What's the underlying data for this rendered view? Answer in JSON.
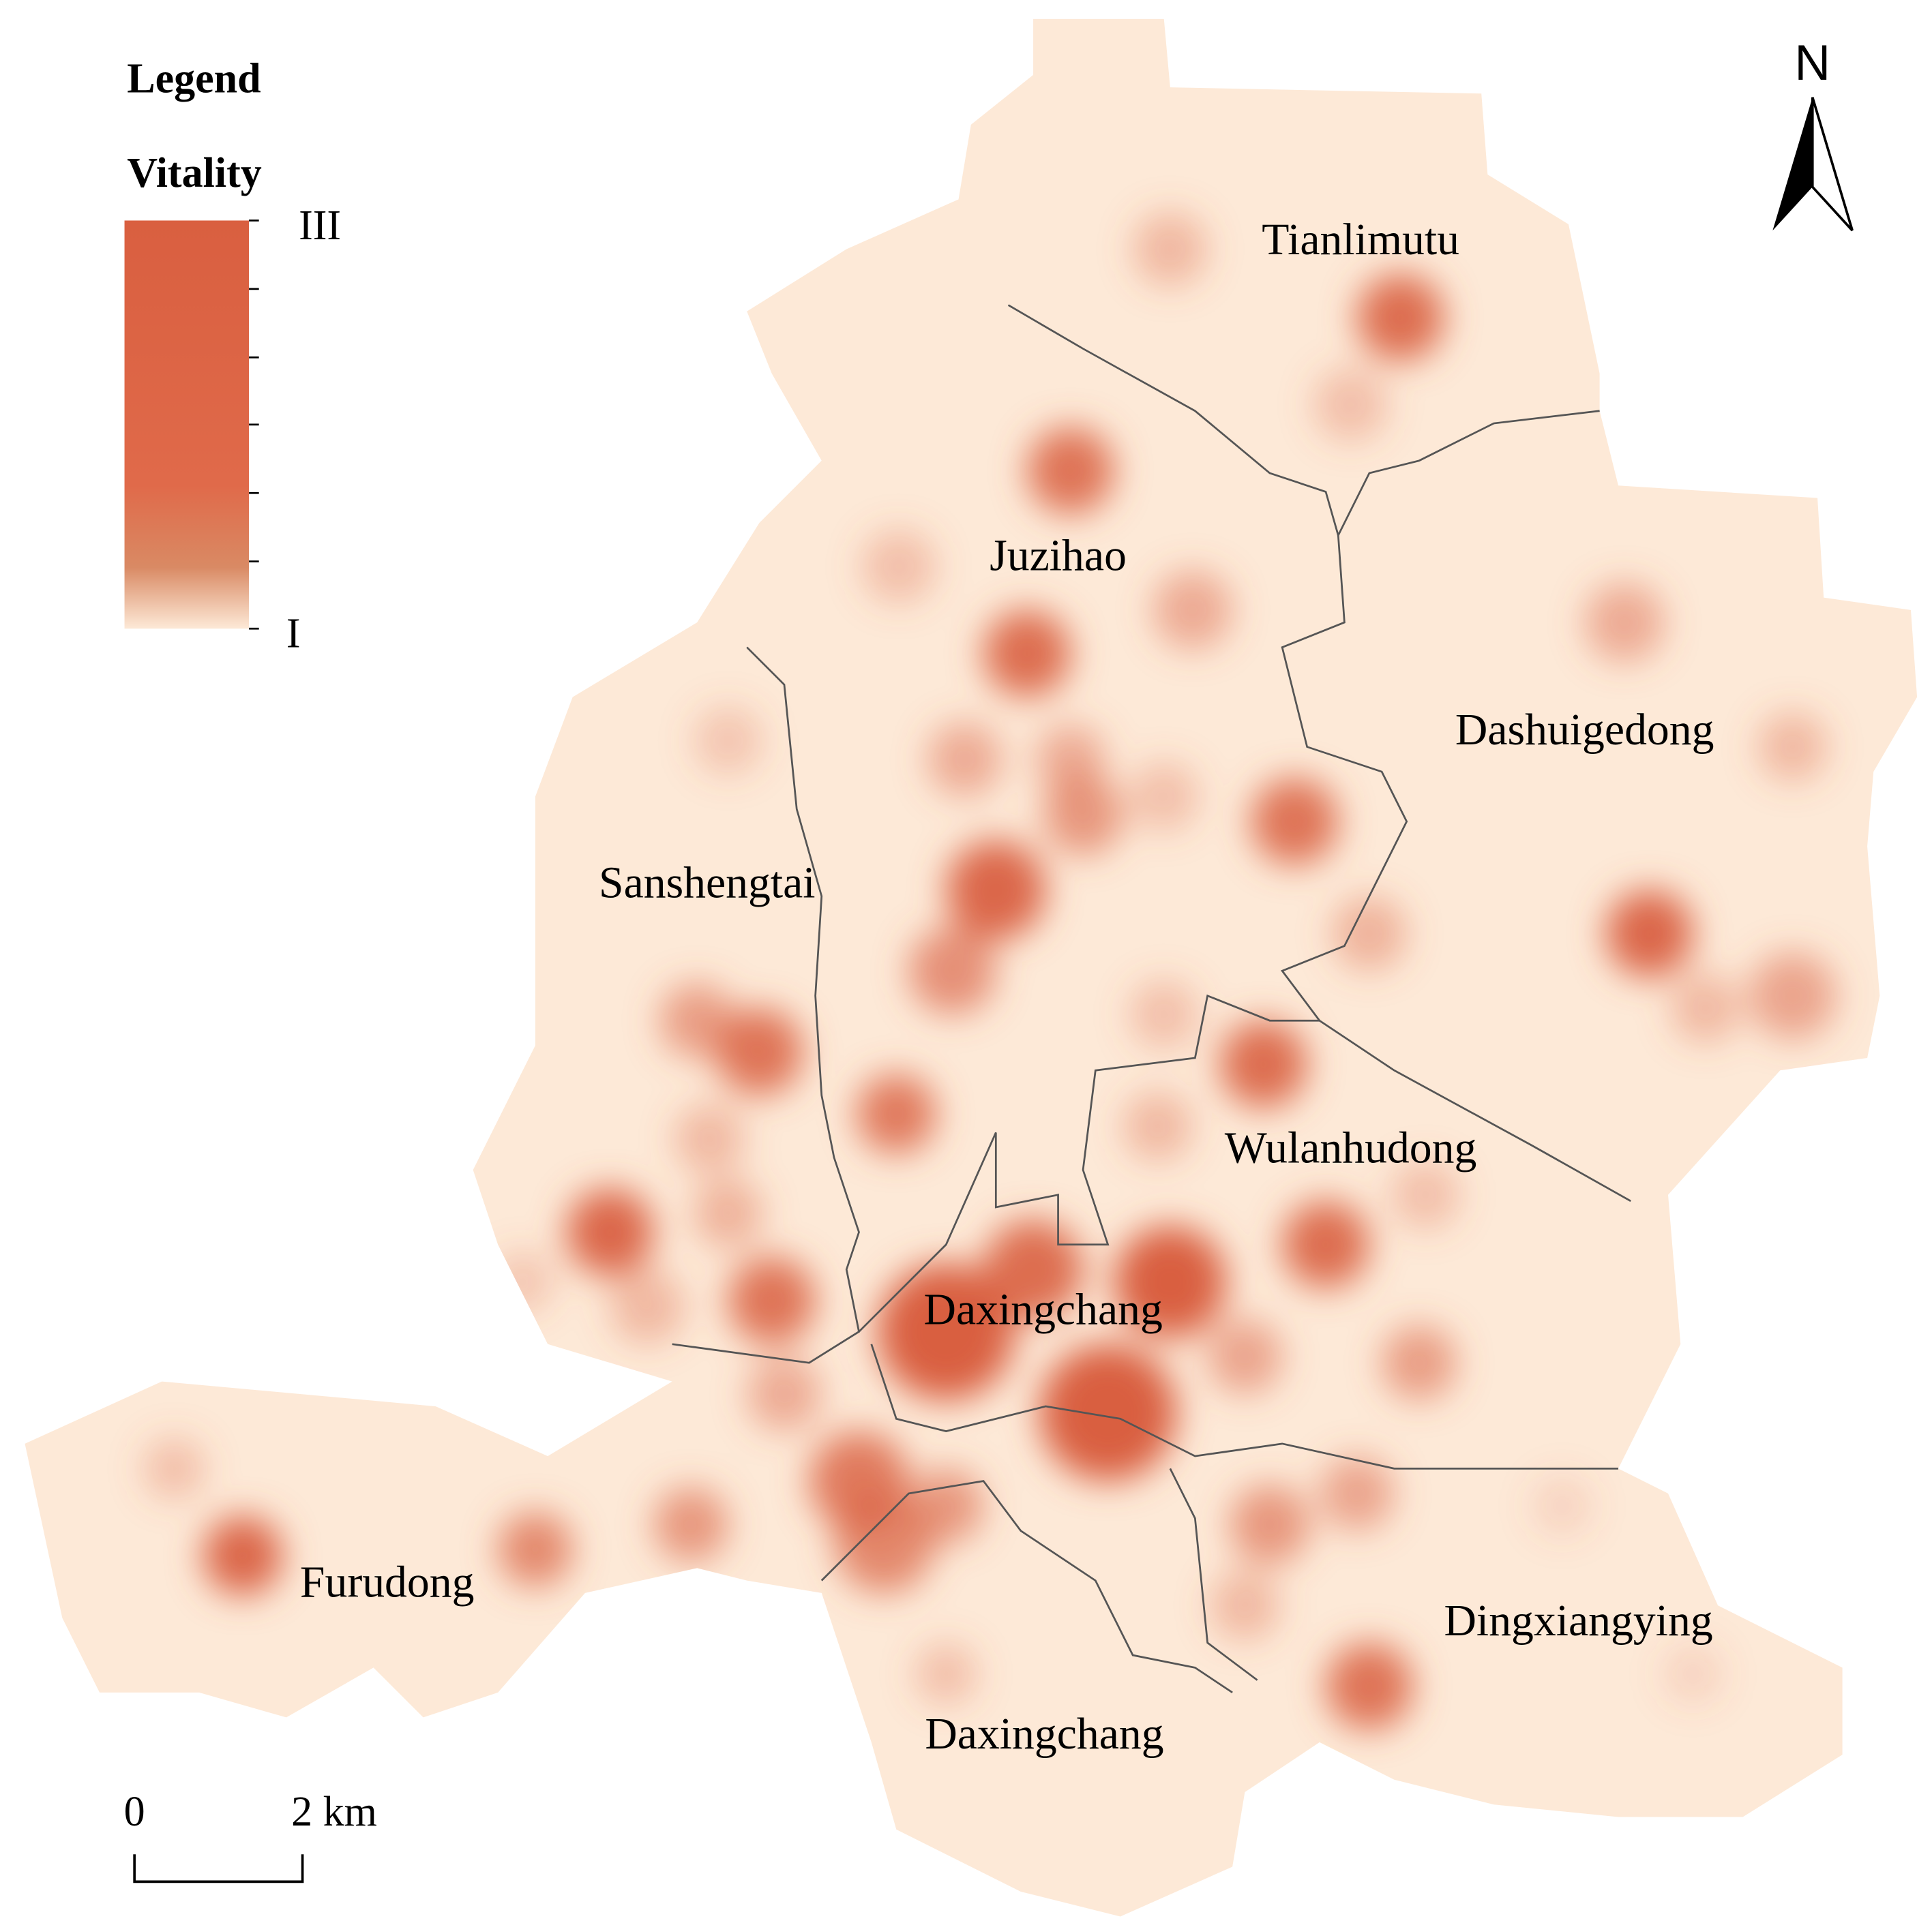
{
  "legend": {
    "title": "Legend",
    "field": "Vitality",
    "max_label": "III",
    "min_label": "I"
  },
  "north_arrow": "N",
  "labels": [
    "Tianlimutu",
    "Juzihao",
    "Dashuigedong",
    "Sanshengtai",
    "Wulanhudong",
    "Daxingchang",
    "Furudong",
    "Dingxiangying",
    "Daxingchang"
  ],
  "scale_bar": {
    "start": "0",
    "end": "2 km"
  }
}
